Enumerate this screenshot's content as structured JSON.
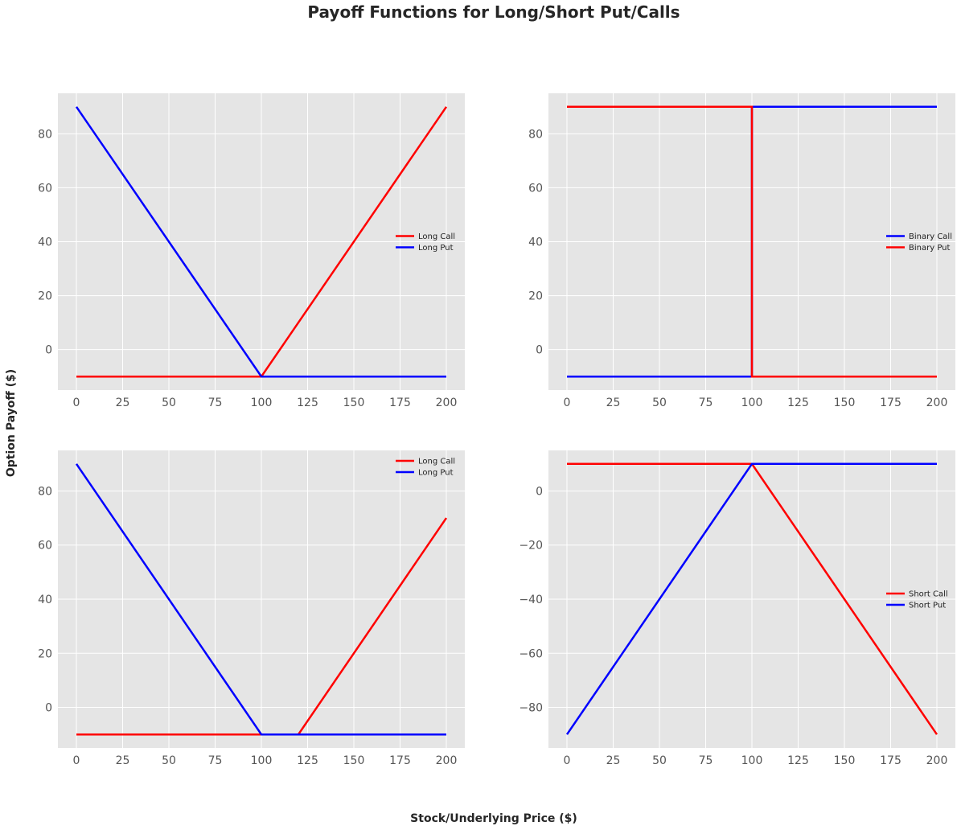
{
  "figure": {
    "title": "Payoff Functions for Long/Short Put/Calls",
    "xlabel": "Stock/Underlying Price ($)",
    "ylabel": "Option Payoff ($)"
  },
  "style": {
    "plot_background": "#e5e5e5",
    "grid_color": "#ffffff",
    "red": "#ff0000",
    "blue": "#0000ff"
  },
  "chart_data": [
    {
      "type": "line",
      "xlim": [
        -10,
        210
      ],
      "ylim": [
        -15,
        95
      ],
      "xticks": [
        0,
        25,
        50,
        75,
        100,
        125,
        150,
        175,
        200
      ],
      "yticks": [
        0,
        20,
        40,
        60,
        80
      ],
      "grid": true,
      "legend_position": "center-right",
      "series": [
        {
          "name": "Long Call",
          "color": "#ff0000",
          "points": [
            [
              0,
              -10
            ],
            [
              100,
              -10
            ],
            [
              200,
              90
            ]
          ]
        },
        {
          "name": "Long Put",
          "color": "#0000ff",
          "points": [
            [
              0,
              90
            ],
            [
              100,
              -10
            ],
            [
              200,
              -10
            ]
          ]
        }
      ]
    },
    {
      "type": "line",
      "xlim": [
        -10,
        210
      ],
      "ylim": [
        -15,
        95
      ],
      "xticks": [
        0,
        25,
        50,
        75,
        100,
        125,
        150,
        175,
        200
      ],
      "yticks": [
        0,
        20,
        40,
        60,
        80
      ],
      "grid": true,
      "legend_position": "center-right",
      "series": [
        {
          "name": "Binary Call",
          "color": "#0000ff",
          "points": [
            [
              0,
              -10
            ],
            [
              100,
              -10
            ],
            [
              100,
              90
            ],
            [
              200,
              90
            ]
          ]
        },
        {
          "name": "Binary Put",
          "color": "#ff0000",
          "points": [
            [
              0,
              90
            ],
            [
              100,
              90
            ],
            [
              100,
              -10
            ],
            [
              200,
              -10
            ]
          ]
        }
      ]
    },
    {
      "type": "line",
      "xlim": [
        -10,
        210
      ],
      "ylim": [
        -15,
        95
      ],
      "xticks": [
        0,
        25,
        50,
        75,
        100,
        125,
        150,
        175,
        200
      ],
      "yticks": [
        0,
        20,
        40,
        60,
        80
      ],
      "grid": true,
      "legend_position": "upper-right",
      "series": [
        {
          "name": "Long Call",
          "color": "#ff0000",
          "points": [
            [
              0,
              -10
            ],
            [
              120,
              -10
            ],
            [
              200,
              70
            ]
          ]
        },
        {
          "name": "Long Put",
          "color": "#0000ff",
          "points": [
            [
              0,
              90
            ],
            [
              100,
              -10
            ],
            [
              200,
              -10
            ]
          ]
        }
      ]
    },
    {
      "type": "line",
      "xlim": [
        -10,
        210
      ],
      "ylim": [
        -95,
        15
      ],
      "xticks": [
        0,
        25,
        50,
        75,
        100,
        125,
        150,
        175,
        200
      ],
      "yticks": [
        -80,
        -60,
        -40,
        -20,
        0
      ],
      "grid": true,
      "legend_position": "center-right",
      "series": [
        {
          "name": "Short Call",
          "color": "#ff0000",
          "points": [
            [
              0,
              10
            ],
            [
              100,
              10
            ],
            [
              200,
              -90
            ]
          ]
        },
        {
          "name": "Short Put",
          "color": "#0000ff",
          "points": [
            [
              0,
              -90
            ],
            [
              100,
              10
            ],
            [
              200,
              10
            ]
          ]
        }
      ]
    }
  ]
}
